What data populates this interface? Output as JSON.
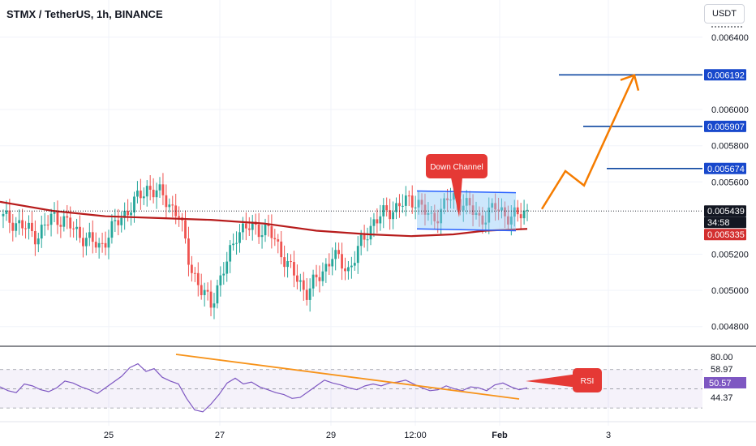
{
  "header": {
    "title": "STMX / TetherUS, 1h, BINANCE"
  },
  "currency_button": "USDT",
  "colors": {
    "up": "#26a69a",
    "down": "#ef5350",
    "ma": "#b71c1c",
    "channel": "#2962ff",
    "channel_fill": "#90caf9",
    "level": "#0d47a1",
    "arrow": "#f57c00",
    "rsi": "#7e57c2",
    "trend": "#f7931a",
    "callout": "#e53935",
    "ma_badge": "#d32f2f"
  },
  "chart_data": {
    "type": "candlestick",
    "ylim": [
      0.0047,
      0.00657
    ],
    "xlabel": "",
    "ylabel": "",
    "price_ticks": [
      "0.006400",
      "0.006000",
      "0.005800",
      "0.005600",
      "0.005200",
      "0.005000",
      "0.004800"
    ],
    "x_ticks": [
      "25",
      "27",
      "29",
      "12:00",
      "Feb",
      "3"
    ],
    "price_badges": [
      {
        "label": "0.006192",
        "value": 0.006192,
        "style": "level"
      },
      {
        "label": "0.005907",
        "value": 0.005907,
        "style": "level"
      },
      {
        "label": "0.005674",
        "value": 0.005674,
        "style": "level"
      },
      {
        "label": "0.005439",
        "value": 0.005439,
        "style": "last"
      },
      {
        "label": "34:58",
        "value": 0.00537,
        "style": "timer"
      },
      {
        "label": "0.005335",
        "value": 0.005335,
        "style": "ma"
      }
    ],
    "price_path": [
      [
        0,
        0.00541
      ],
      [
        0.04,
        0.00536
      ],
      [
        0.07,
        0.0053
      ],
      [
        0.1,
        0.00541
      ],
      [
        0.12,
        0.00539
      ],
      [
        0.15,
        0.00531
      ],
      [
        0.19,
        0.00524
      ],
      [
        0.22,
        0.00537
      ],
      [
        0.25,
        0.00547
      ],
      [
        0.28,
        0.00557
      ],
      [
        0.31,
        0.00552
      ],
      [
        0.34,
        0.00541
      ],
      [
        0.36,
        0.00515
      ],
      [
        0.38,
        0.005
      ],
      [
        0.4,
        0.00493
      ],
      [
        0.43,
        0.00515
      ],
      [
        0.45,
        0.00533
      ],
      [
        0.48,
        0.00535
      ],
      [
        0.51,
        0.00533
      ],
      [
        0.53,
        0.00523
      ],
      [
        0.55,
        0.00512
      ],
      [
        0.58,
        0.00499
      ],
      [
        0.61,
        0.00509
      ],
      [
        0.63,
        0.0052
      ],
      [
        0.66,
        0.00511
      ],
      [
        0.68,
        0.00523
      ],
      [
        0.71,
        0.00539
      ],
      [
        0.74,
        0.00544
      ],
      [
        0.76,
        0.00548
      ],
      [
        0.79,
        0.0055
      ],
      [
        0.82,
        0.00538
      ],
      [
        0.85,
        0.00551
      ],
      [
        0.88,
        0.00549
      ],
      [
        0.91,
        0.00539
      ],
      [
        0.94,
        0.00546
      ],
      [
        0.97,
        0.0054
      ],
      [
        1,
        0.00544
      ]
    ],
    "ma_path": [
      [
        0,
        0.00549
      ],
      [
        0.1,
        0.00544
      ],
      [
        0.2,
        0.00541
      ],
      [
        0.3,
        0.0054
      ],
      [
        0.4,
        0.00539
      ],
      [
        0.5,
        0.00537
      ],
      [
        0.6,
        0.00533
      ],
      [
        0.7,
        0.00531
      ],
      [
        0.78,
        0.0053
      ],
      [
        0.86,
        0.00531
      ],
      [
        0.92,
        0.00533
      ],
      [
        1,
        0.00534
      ]
    ],
    "channel": {
      "top_start": 0.00555,
      "top_end": 0.00554,
      "bottom_start": 0.00534,
      "bottom_end": 0.00533
    },
    "levels": [
      0.005674,
      0.005907,
      0.006192
    ],
    "annotations": {
      "channel_label": "Down Channel",
      "rsi_label": "RSI"
    },
    "projection": [
      0.00545,
      0.00566,
      0.00558,
      0.00619
    ],
    "rsi": {
      "ticks": [
        "80.00",
        "58.97",
        "50.57",
        "44.37"
      ],
      "ylim": [
        20,
        90
      ],
      "band": [
        30,
        70
      ],
      "values": [
        52,
        48,
        46,
        55,
        53,
        49,
        47,
        51,
        58,
        56,
        52,
        49,
        45,
        51,
        57,
        63,
        72,
        76,
        68,
        71,
        62,
        58,
        55,
        40,
        28,
        26,
        34,
        44,
        56,
        61,
        55,
        57,
        52,
        49,
        46,
        44,
        40,
        41,
        47,
        53,
        59,
        56,
        54,
        51,
        49,
        53,
        55,
        53,
        56,
        57,
        59,
        55,
        51,
        48,
        49,
        53,
        50,
        48,
        52,
        51,
        48,
        54,
        56,
        52,
        49,
        51
      ]
    }
  }
}
